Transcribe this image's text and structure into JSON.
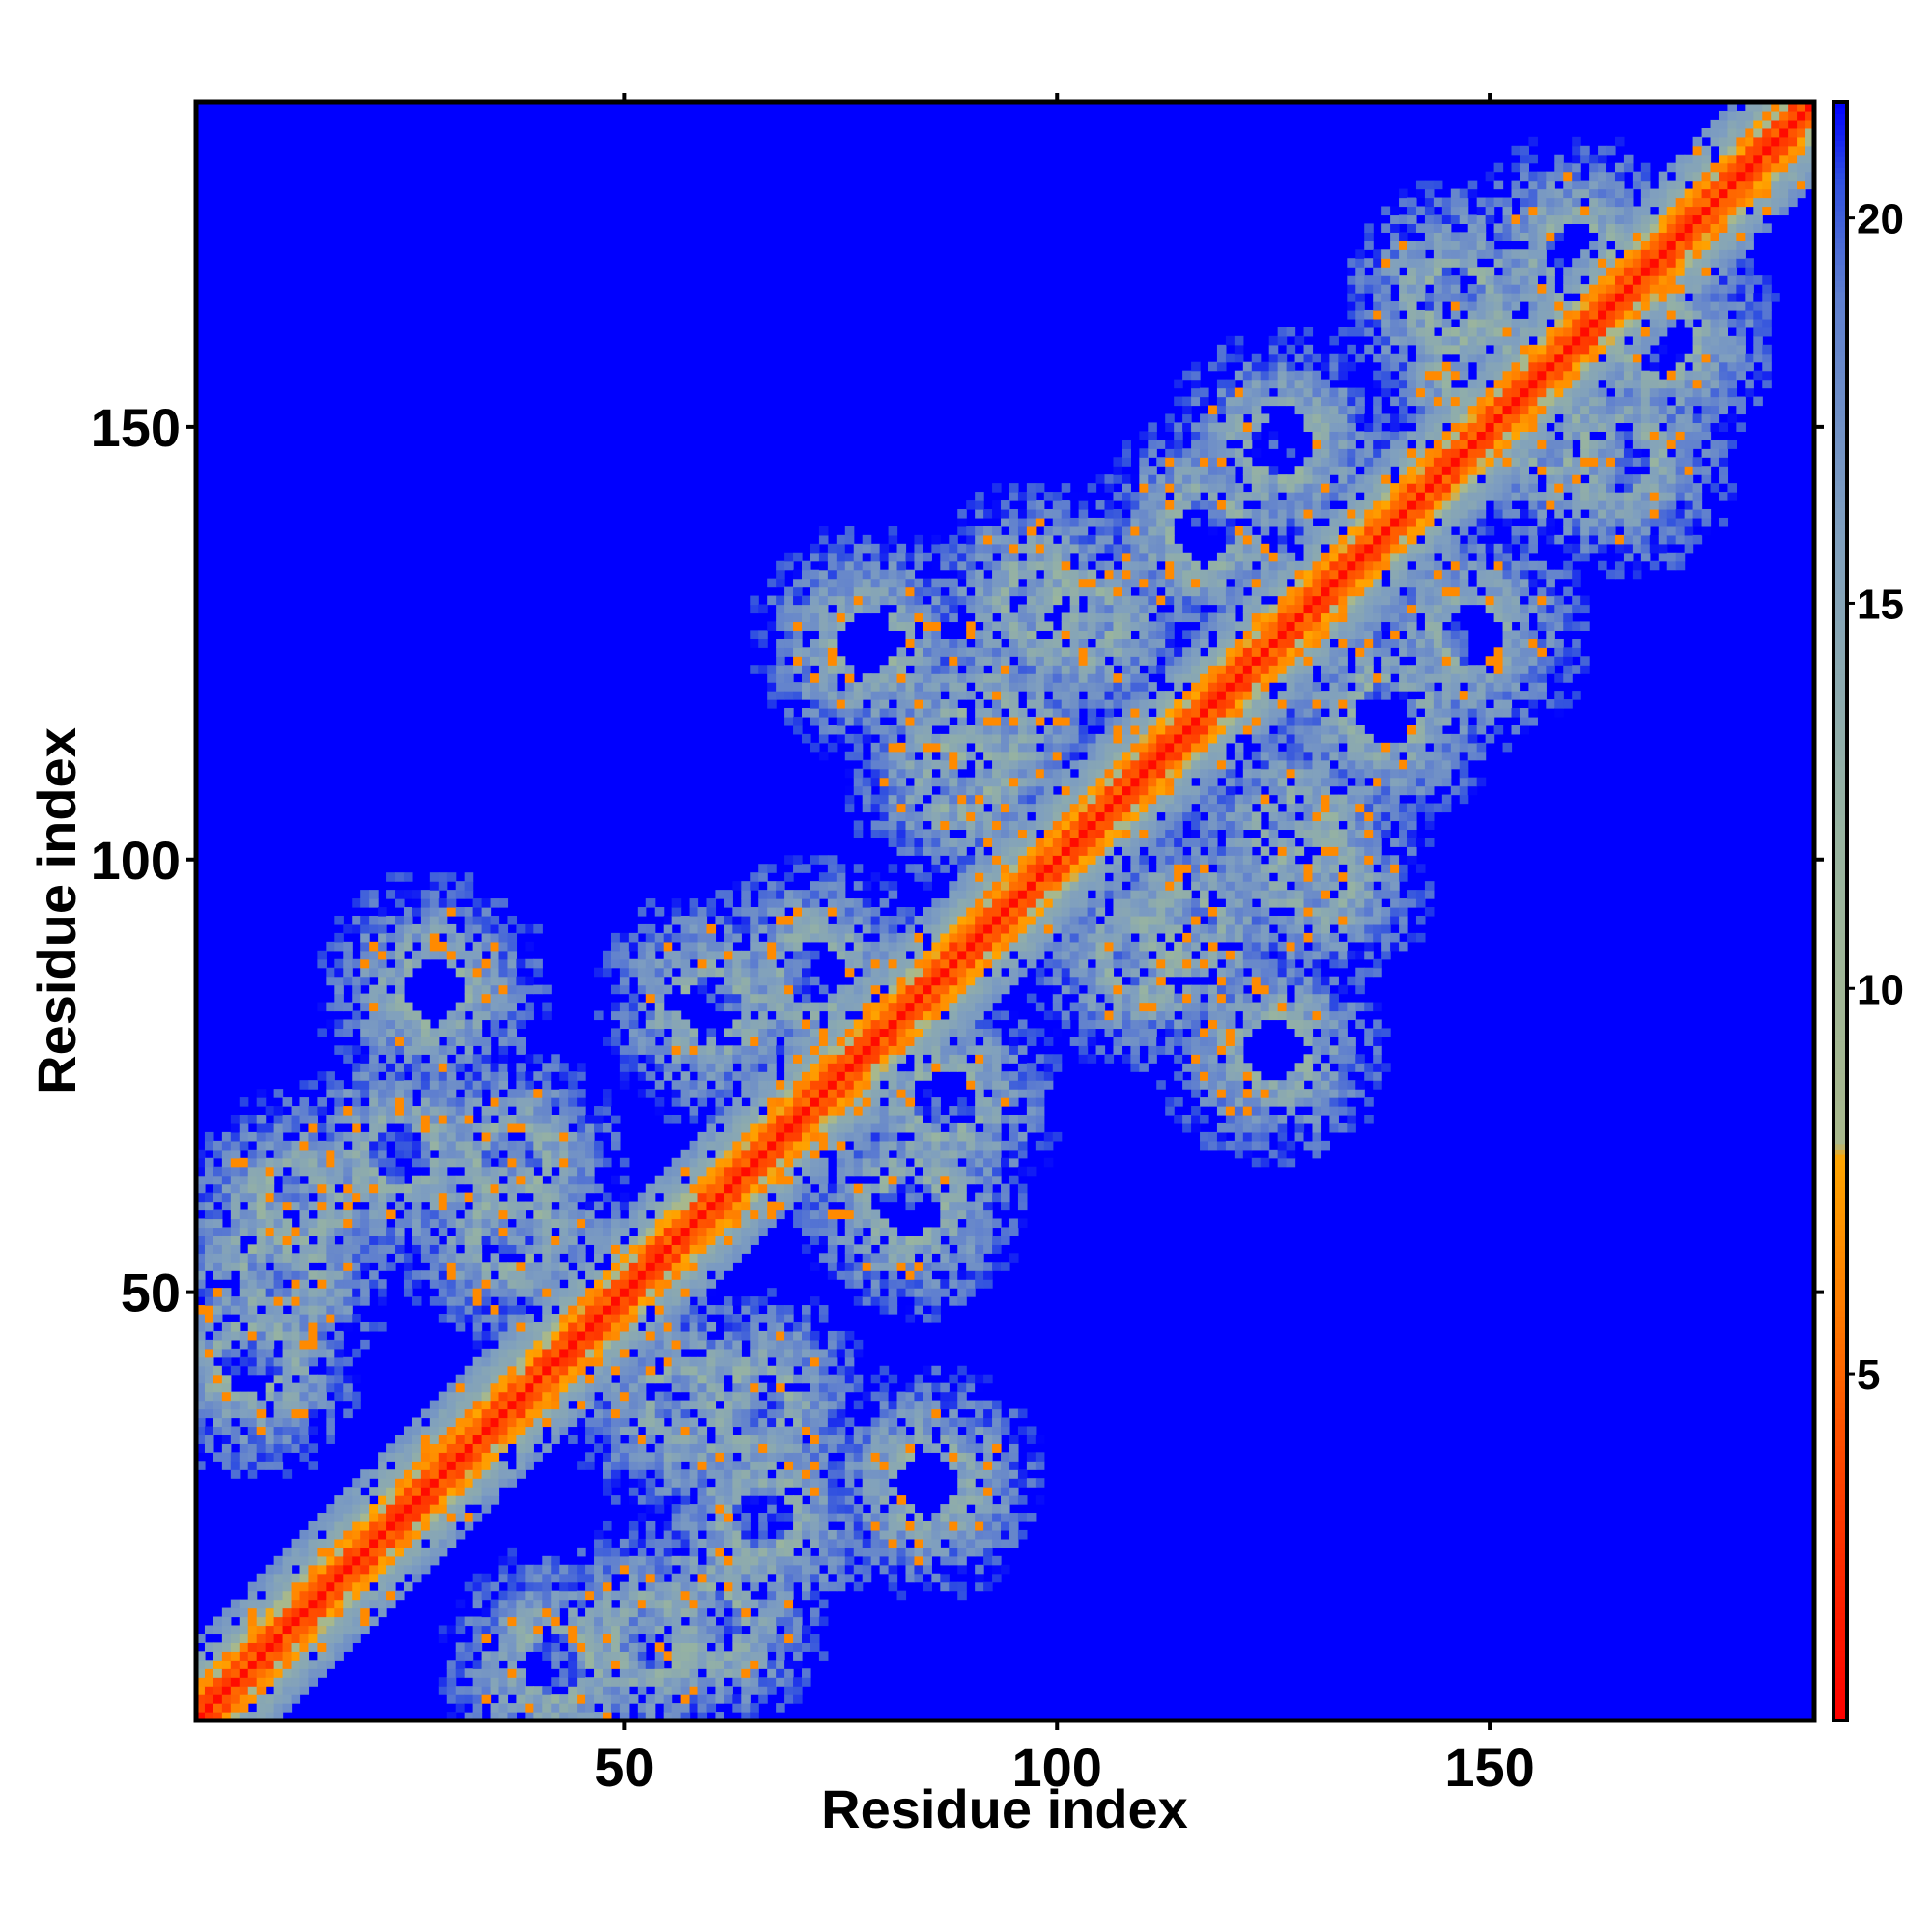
{
  "chart_data": {
    "type": "heatmap",
    "title": "",
    "xlabel": "Residue index",
    "ylabel": "Residue index",
    "n_residues": 187,
    "xlim": [
      1,
      187
    ],
    "ylim": [
      1,
      187
    ],
    "x_ticks": [
      50,
      100,
      150
    ],
    "y_ticks": [
      50,
      100,
      150
    ],
    "colorbar": {
      "range": [
        0.5,
        21.5
      ],
      "ticks": [
        5,
        10,
        15,
        20
      ],
      "stops": [
        {
          "value": 0.5,
          "color": "#ff0000"
        },
        {
          "value": 4.0,
          "color": "#ff4a00"
        },
        {
          "value": 6.0,
          "color": "#ff7f00"
        },
        {
          "value": 7.8,
          "color": "#ffa500"
        },
        {
          "value": 8.0,
          "color": "#a8b88c"
        },
        {
          "value": 12.0,
          "color": "#98b4a0"
        },
        {
          "value": 16.0,
          "color": "#7f9fbf"
        },
        {
          "value": 19.0,
          "color": "#5f7fcf"
        },
        {
          "value": 20.5,
          "color": "#3050e0"
        },
        {
          "value": 21.5,
          "color": "#0000ff"
        }
      ]
    },
    "colors": {
      "background_value": "#0000ff",
      "diagonal": "#ff0000",
      "frame": "#000000"
    },
    "block_centers": [
      [
        7,
        42
      ],
      [
        37,
        65
      ],
      [
        53,
        10
      ],
      [
        57,
        37
      ],
      [
        72,
        87
      ],
      [
        89,
        110
      ],
      [
        103,
        128
      ],
      [
        115,
        92
      ],
      [
        126,
        148
      ],
      [
        138,
        117
      ],
      [
        149,
        157
      ],
      [
        165,
        146
      ],
      [
        12,
        60
      ],
      [
        28,
        85
      ],
      [
        66,
        24
      ],
      [
        83,
        60
      ],
      [
        98,
        130
      ],
      [
        125,
        78
      ],
      [
        160,
        170
      ]
    ]
  }
}
